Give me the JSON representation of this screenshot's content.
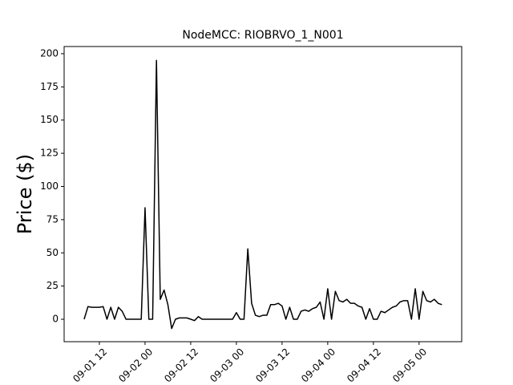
{
  "chart_data": {
    "type": "line",
    "title": "NodeMCC: RIOBRVO_1_N001",
    "y_label": "Price ($)",
    "x": [
      8,
      9,
      10,
      11,
      12,
      13,
      14,
      15,
      16,
      17,
      18,
      19,
      20,
      21,
      22,
      23,
      24,
      25,
      26,
      27,
      28,
      29,
      30,
      31,
      32,
      33,
      34,
      35,
      36,
      37,
      38,
      39,
      40,
      41,
      42,
      43,
      44,
      45,
      46,
      47,
      48,
      49,
      50,
      51,
      52,
      53,
      54,
      55,
      56,
      57,
      58,
      59,
      60,
      61,
      62,
      63,
      64,
      65,
      66,
      67,
      68,
      69,
      70,
      71,
      72,
      73,
      74,
      75,
      76,
      77,
      78,
      79,
      80,
      81,
      82,
      83,
      84,
      85,
      86,
      87,
      88,
      89,
      90,
      91,
      92,
      93,
      94,
      95,
      96,
      97,
      98,
      99,
      100,
      101,
      102
    ],
    "series": [
      {
        "color": "#000000",
        "values": [
          0,
          9.5,
          9,
          9,
          9,
          9.5,
          0,
          9,
          0,
          9,
          6,
          0,
          0,
          0,
          0,
          0,
          84,
          0,
          0,
          195,
          15,
          22,
          11,
          -7,
          0,
          1,
          1,
          1,
          0,
          -1,
          2,
          0,
          0,
          0,
          0,
          0,
          0,
          0,
          0,
          0,
          5,
          0,
          0,
          53,
          12,
          3,
          2,
          3,
          3,
          11,
          11,
          12,
          10,
          0,
          9,
          0,
          0,
          6,
          7,
          6,
          8,
          9,
          13,
          0,
          23,
          0,
          21,
          14,
          13,
          15,
          12,
          12,
          10,
          9,
          0,
          8,
          0,
          0,
          6,
          5,
          7,
          9,
          10,
          13,
          14,
          14,
          0,
          23,
          0,
          21,
          14,
          13,
          15,
          12,
          11
        ]
      }
    ],
    "xlim": [
      2.74,
      107.2
    ],
    "ylim": [
      -16.9,
      205.4
    ],
    "xticks": [
      {
        "value": 12,
        "label": "09-01 12"
      },
      {
        "value": 24,
        "label": "09-02 00"
      },
      {
        "value": 36,
        "label": "09-02 12"
      },
      {
        "value": 48,
        "label": "09-03 00"
      },
      {
        "value": 60,
        "label": "09-03 12"
      },
      {
        "value": 72,
        "label": "09-04 00"
      },
      {
        "value": 84,
        "label": "09-04 12"
      },
      {
        "value": 96,
        "label": "09-05 00"
      }
    ],
    "yticks": [
      0,
      25,
      50,
      75,
      100,
      125,
      150,
      175,
      200
    ]
  }
}
